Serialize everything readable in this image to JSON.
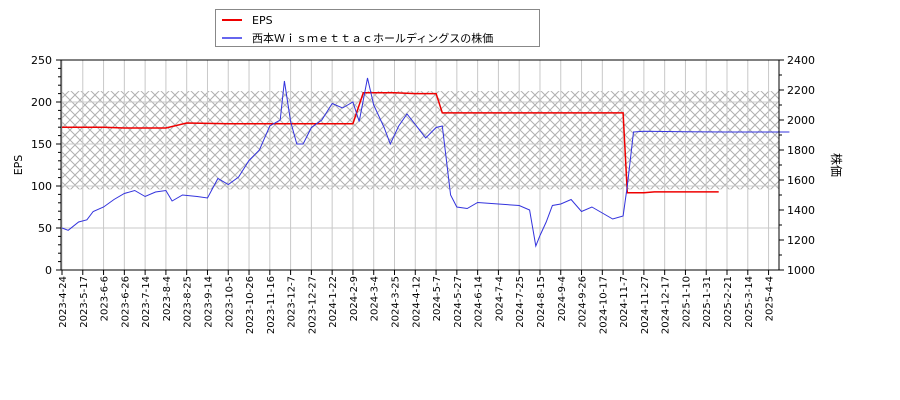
{
  "legend": {
    "items": [
      {
        "label": "EPS",
        "color": "#ee0000"
      },
      {
        "label": "西本Ｗｉｓｍｅｔｔａｃホールディングスの株価",
        "color": "#3333dd"
      }
    ]
  },
  "chart_data": {
    "type": "line",
    "title": "",
    "xlabel": "",
    "ylabel": "EPS",
    "y2label": "株価",
    "ylim": [
      0,
      250
    ],
    "y2lim": [
      1000,
      2400
    ],
    "yticks": [
      0,
      50,
      100,
      150,
      200,
      250
    ],
    "y2ticks": [
      1000,
      1200,
      1400,
      1600,
      1800,
      2000,
      2200,
      2400
    ],
    "grid": true,
    "legend_position": "top-left-outside",
    "hatch_band": {
      "axis": "y",
      "from": 96,
      "to": 213
    },
    "x_tick_labels": [
      "2023-4-24",
      "2023-5-17",
      "2023-6-6",
      "2023-6-26",
      "2023-7-14",
      "2023-8-4",
      "2023-8-25",
      "2023-9-14",
      "2023-10-5",
      "2023-10-26",
      "2023-11-16",
      "2023-12-7",
      "2023-12-27",
      "2024-1-22",
      "2024-2-9",
      "2024-3-4",
      "2024-3-25",
      "2024-4-12",
      "2024-5-7",
      "2024-5-27",
      "2024-6-14",
      "2024-7-4",
      "2024-7-25",
      "2024-8-15",
      "2024-9-4",
      "2024-9-26",
      "2024-10-17",
      "2024-11-7",
      "2024-11-27",
      "2024-12-17",
      "2025-1-10",
      "2025-1-31",
      "2025-2-21",
      "2025-3-14",
      "2025-4-4"
    ],
    "series": [
      {
        "name": "EPS",
        "axis": "left",
        "color": "#ee0000",
        "points": [
          [
            0,
            170
          ],
          [
            2,
            170
          ],
          [
            3,
            169
          ],
          [
            5,
            169
          ],
          [
            6,
            175
          ],
          [
            8,
            174
          ],
          [
            11,
            174
          ],
          [
            12,
            174
          ],
          [
            14,
            174
          ],
          [
            14.5,
            211
          ],
          [
            16,
            211
          ],
          [
            17,
            210
          ],
          [
            18,
            210
          ],
          [
            18.3,
            187
          ],
          [
            20,
            187
          ],
          [
            22,
            187
          ],
          [
            24,
            187
          ],
          [
            26,
            187
          ],
          [
            27,
            187
          ],
          [
            27.2,
            92
          ],
          [
            28,
            92
          ],
          [
            28.5,
            93
          ],
          [
            30,
            93
          ],
          [
            31,
            93
          ],
          [
            31.6,
            93
          ]
        ]
      },
      {
        "name": "西本Ｗｉｓｍｅｔｔａｃホールディングスの株価",
        "axis": "right",
        "color": "#3333dd",
        "points": [
          [
            0,
            1280
          ],
          [
            0.3,
            1265
          ],
          [
            0.8,
            1320
          ],
          [
            1.2,
            1335
          ],
          [
            1.5,
            1390
          ],
          [
            2,
            1420
          ],
          [
            2.5,
            1470
          ],
          [
            3,
            1510
          ],
          [
            3.5,
            1530
          ],
          [
            4,
            1490
          ],
          [
            4.5,
            1520
          ],
          [
            5,
            1530
          ],
          [
            5.3,
            1460
          ],
          [
            5.8,
            1500
          ],
          [
            6.5,
            1490
          ],
          [
            7,
            1480
          ],
          [
            7.5,
            1610
          ],
          [
            8,
            1570
          ],
          [
            8.5,
            1620
          ],
          [
            9,
            1730
          ],
          [
            9.5,
            1800
          ],
          [
            10,
            1960
          ],
          [
            10.5,
            2000
          ],
          [
            10.7,
            2260
          ],
          [
            11,
            1990
          ],
          [
            11.3,
            1840
          ],
          [
            11.6,
            1840
          ],
          [
            12,
            1950
          ],
          [
            12.5,
            2000
          ],
          [
            13,
            2110
          ],
          [
            13.5,
            2080
          ],
          [
            14,
            2120
          ],
          [
            14.3,
            1990
          ],
          [
            14.7,
            2280
          ],
          [
            15,
            2100
          ],
          [
            15.5,
            1950
          ],
          [
            15.8,
            1840
          ],
          [
            16.2,
            1960
          ],
          [
            16.6,
            2040
          ],
          [
            17,
            1970
          ],
          [
            17.5,
            1880
          ],
          [
            18,
            1950
          ],
          [
            18.3,
            1960
          ],
          [
            18.7,
            1500
          ],
          [
            19,
            1420
          ],
          [
            19.5,
            1410
          ],
          [
            20,
            1450
          ],
          [
            21,
            1440
          ],
          [
            22,
            1430
          ],
          [
            22.5,
            1400
          ],
          [
            22.8,
            1160
          ],
          [
            23,
            1230
          ],
          [
            23.3,
            1320
          ],
          [
            23.6,
            1430
          ],
          [
            24,
            1440
          ],
          [
            24.5,
            1470
          ],
          [
            25,
            1390
          ],
          [
            25.5,
            1420
          ],
          [
            26,
            1380
          ],
          [
            26.5,
            1340
          ],
          [
            27,
            1360
          ],
          [
            27.2,
            1560
          ],
          [
            27.5,
            1920
          ],
          [
            28,
            1925
          ],
          [
            30,
            1922
          ],
          [
            32,
            1920
          ],
          [
            35,
            1920
          ]
        ]
      }
    ]
  }
}
